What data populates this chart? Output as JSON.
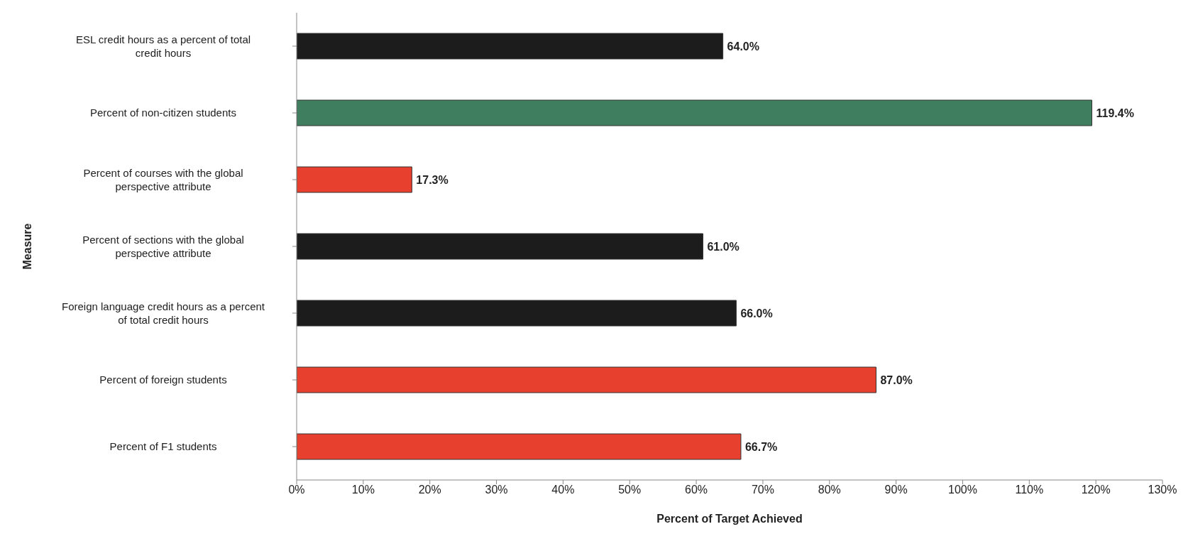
{
  "chart_data": {
    "type": "bar",
    "orientation": "horizontal",
    "xlabel": "Percent of Target Achieved",
    "ylabel": "Measure",
    "categories": [
      "ESL credit hours as a percent of total credit hours",
      "Percent of non-citizen students",
      "Percent of courses with the global perspective attribute",
      "Percent of sections with the global perspective attribute",
      "Foreign language credit hours as a percent of total credit hours",
      "Percent of foreign students",
      "Percent of F1 students"
    ],
    "values": [
      64.0,
      119.4,
      17.3,
      61.0,
      66.0,
      87.0,
      66.7
    ],
    "value_labels": [
      "64.0%",
      "119.4%",
      "17.3%",
      "61.0%",
      "66.0%",
      "87.0%",
      "66.7%"
    ],
    "colors": [
      "#1c1c1c",
      "#3f7f5f",
      "#e8402f",
      "#1c1c1c",
      "#1c1c1c",
      "#e8402f",
      "#e8402f"
    ],
    "xlim": [
      0,
      130
    ],
    "xticks": [
      {
        "value": 0,
        "label": "0%"
      },
      {
        "value": 10,
        "label": "10%"
      },
      {
        "value": 20,
        "label": "20%"
      },
      {
        "value": 30,
        "label": "30%"
      },
      {
        "value": 40,
        "label": "40%"
      },
      {
        "value": 50,
        "label": "50%"
      },
      {
        "value": 60,
        "label": "60%"
      },
      {
        "value": 70,
        "label": "70%"
      },
      {
        "value": 80,
        "label": "80%"
      },
      {
        "value": 90,
        "label": "90%"
      },
      {
        "value": 100,
        "label": "100%"
      },
      {
        "value": 110,
        "label": "110%"
      },
      {
        "value": 120,
        "label": "120%"
      },
      {
        "value": 130,
        "label": "130%"
      }
    ],
    "grid": false,
    "legend": false
  }
}
